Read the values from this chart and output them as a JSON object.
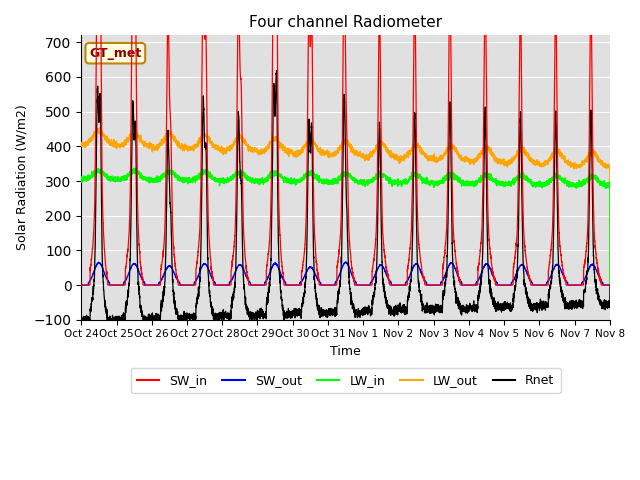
{
  "title": "Four channel Radiometer",
  "xlabel": "Time",
  "ylabel": "Solar Radiation (W/m2)",
  "ylim": [
    -100,
    720
  ],
  "yticks": [
    -100,
    0,
    100,
    200,
    300,
    400,
    500,
    600,
    700
  ],
  "legend_labels": [
    "SW_in",
    "SW_out",
    "LW_in",
    "LW_out",
    "Rnet"
  ],
  "legend_colors": [
    "red",
    "blue",
    "#00ff00",
    "orange",
    "black"
  ],
  "station_label": "GT_met",
  "background_color": "#e0e0e0",
  "x_tick_labels": [
    "Oct 24",
    "Oct 25",
    "Oct 26",
    "Oct 27",
    "Oct 28",
    "Oct 29",
    "Oct 30",
    "Oct 31",
    "Nov 1",
    "Nov 2",
    "Nov 3",
    "Nov 4",
    "Nov 5",
    "Nov 6",
    "Nov 7",
    "Nov 8"
  ],
  "n_days": 15,
  "n_points_per_day": 288
}
